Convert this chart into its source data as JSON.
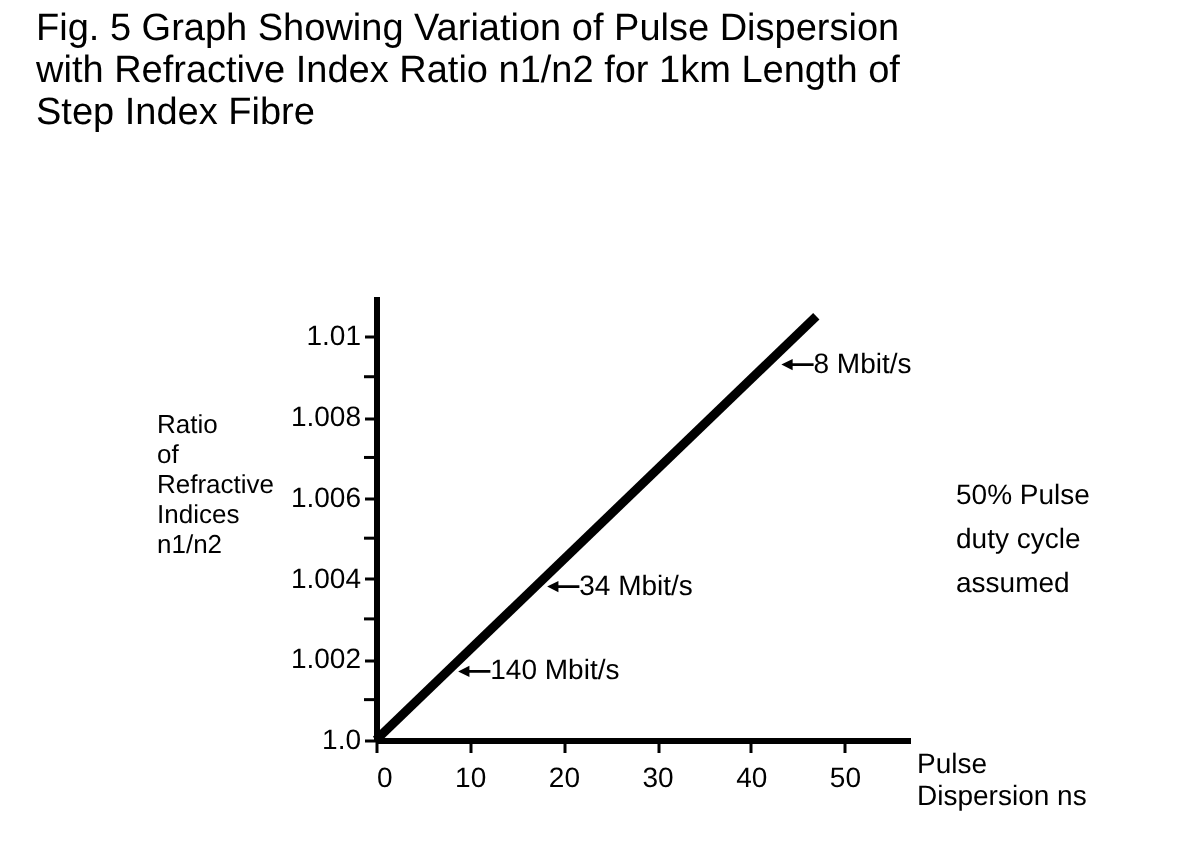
{
  "chart_data": {
    "type": "line",
    "title": "Fig. 5 Graph Showing Variation of Pulse Dispersion with Refractive Index Ratio n1/n2 for 1km Length of Step Index Fibre",
    "xlabel": "Pulse Dispersion ns",
    "ylabel": "Ratio of Refractive Indices n1/n2",
    "x": [
      0,
      47
    ],
    "series": [
      {
        "color": "#000000",
        "values": [
          1.0,
          1.0105
        ]
      }
    ],
    "xlim": [
      0,
      57
    ],
    "ylim": [
      1.0,
      1.011
    ],
    "xticks": [
      0,
      10,
      20,
      30,
      40,
      50
    ],
    "yticks": [
      {
        "value": 1.0,
        "label": "1.0"
      },
      {
        "value": 1.001,
        "label": null
      },
      1.002,
      {
        "value": 1.003,
        "label": null
      },
      1.004,
      {
        "value": 1.005,
        "label": null
      },
      1.006,
      {
        "value": 1.007,
        "label": null
      },
      1.008,
      {
        "value": 1.009,
        "label": null
      },
      1.01
    ],
    "annotations": [
      {
        "text": "8 Mbit/s",
        "x": 42,
        "y": 1.0093
      },
      {
        "text": "34 Mbit/s",
        "x": 17,
        "y": 1.0038
      },
      {
        "text": "140 Mbit/s",
        "x": 7.5,
        "y": 1.0017
      },
      "50% Pulse duty cycle assumed"
    ],
    "grid": false,
    "legend": false,
    "marker": "none",
    "line_style": "solid"
  }
}
